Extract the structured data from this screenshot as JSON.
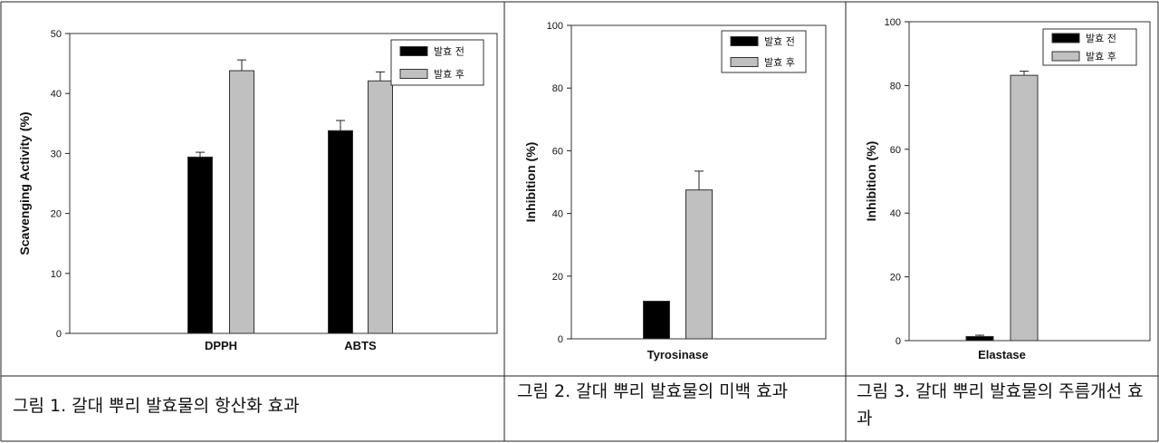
{
  "colors": {
    "before": "#000000",
    "after": "#c0c0c0",
    "frame": "#333333"
  },
  "legend": {
    "before_label": "발효 전",
    "after_label": "발효 후"
  },
  "captions": [
    "그림 1. 갈대 뿌리 발효물의 항산화 효과",
    "그림 2. 갈대 뿌리 발효물의 미백 효과",
    "그림 3. 갈대 뿌리 발효물의 주름개선 효과"
  ],
  "chart_data": [
    {
      "type": "bar",
      "ylabel": "Scavenging Activity (%)",
      "xlabel": "",
      "ylim": [
        0,
        50
      ],
      "yticks": [
        0,
        10,
        20,
        30,
        40,
        50
      ],
      "categories": [
        "DPPH",
        "ABTS"
      ],
      "series": [
        {
          "name": "발효 전",
          "values": [
            29.4,
            33.8
          ],
          "errors": [
            0.8,
            1.7
          ]
        },
        {
          "name": "발효 후",
          "values": [
            43.8,
            42.1
          ],
          "errors": [
            1.8,
            1.5
          ]
        }
      ],
      "legend": "top-right",
      "grid": false
    },
    {
      "type": "bar",
      "ylabel": "Inhibition (%)",
      "xlabel": "",
      "ylim": [
        0,
        100
      ],
      "yticks": [
        0,
        20,
        40,
        60,
        80,
        100
      ],
      "categories": [
        "Tyrosinase"
      ],
      "series": [
        {
          "name": "발효 전",
          "values": [
            12.0
          ],
          "errors": [
            0.0
          ]
        },
        {
          "name": "발효 후",
          "values": [
            47.5
          ],
          "errors": [
            6.0
          ]
        }
      ],
      "legend": "top-right",
      "grid": false
    },
    {
      "type": "bar",
      "ylabel": "Inhibition (%)",
      "xlabel": "",
      "ylim": [
        0,
        100
      ],
      "yticks": [
        0,
        20,
        40,
        60,
        80,
        100
      ],
      "categories": [
        "Elastase"
      ],
      "series": [
        {
          "name": "발효 전",
          "values": [
            1.3
          ],
          "errors": [
            0.4
          ]
        },
        {
          "name": "발효 후",
          "values": [
            83.2
          ],
          "errors": [
            1.3
          ]
        }
      ],
      "legend": "top-right",
      "grid": false
    }
  ]
}
